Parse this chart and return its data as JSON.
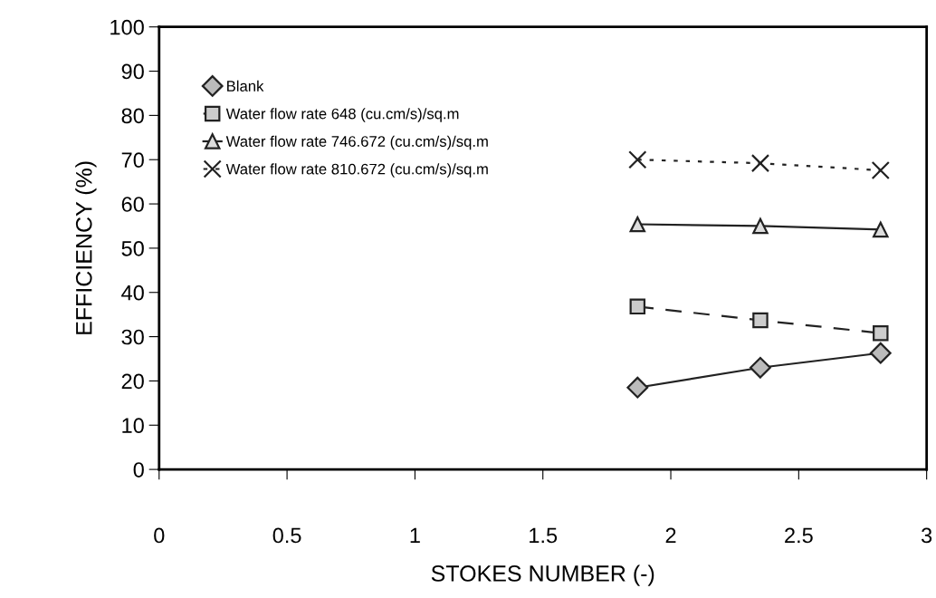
{
  "chart_data": {
    "type": "line",
    "xlabel": "STOKES NUMBER (-)",
    "ylabel": "EFFICIENCY (%)",
    "xlim": [
      0,
      3
    ],
    "xticks": [
      0,
      0.5,
      1,
      1.5,
      2,
      2.5,
      3
    ],
    "ylim": [
      0,
      100
    ],
    "yticks": [
      0,
      10,
      20,
      30,
      40,
      50,
      60,
      70,
      80,
      90,
      100
    ],
    "grid": false,
    "legend": "top left",
    "series": [
      {
        "name": "Blank",
        "color": "#222222",
        "marker": "diamond",
        "line_style": "solid",
        "x": [
          1.87,
          2.35,
          2.82
        ],
        "values": [
          18.5,
          23.0,
          26.3
        ]
      },
      {
        "name": "Water flow rate 648 (cu.cm/s)/sq.m",
        "color": "#222222",
        "marker": "square",
        "line_style": "dashed",
        "x": [
          1.87,
          2.35,
          2.82
        ],
        "values": [
          36.8,
          33.7,
          30.8
        ]
      },
      {
        "name": "Water flow rate 746.672 (cu.cm/s)/sq.m",
        "color": "#222222",
        "marker": "triangle",
        "line_style": "solid",
        "x": [
          1.87,
          2.35,
          2.82
        ],
        "values": [
          55.4,
          55.0,
          54.2
        ]
      },
      {
        "name": "Water flow rate 810.672 (cu.cm/s)/sq.m",
        "color": "#222222",
        "marker": "cross",
        "line_style": "dotted",
        "x": [
          1.87,
          2.35,
          2.82
        ],
        "values": [
          70.0,
          69.2,
          67.6
        ]
      }
    ]
  }
}
